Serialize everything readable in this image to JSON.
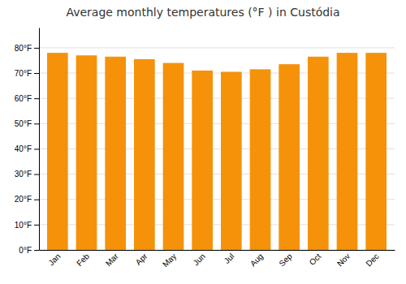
{
  "chart_data": {
    "type": "bar",
    "title": "Average monthly temperatures (°F ) in Custódia",
    "categories": [
      "Jan",
      "Feb",
      "Mar",
      "Apr",
      "May",
      "Jun",
      "Jul",
      "Aug",
      "Sep",
      "Oct",
      "Nov",
      "Dec"
    ],
    "values": [
      78.0,
      77.0,
      76.5,
      75.5,
      74.0,
      71.0,
      70.5,
      71.5,
      73.5,
      76.5,
      78.0,
      78.0
    ],
    "color": "#F5920A",
    "ylim": [
      0,
      88
    ],
    "yticks": [
      {
        "value": 0,
        "label": "0°F"
      },
      {
        "value": 10,
        "label": "10°F"
      },
      {
        "value": 20,
        "label": "20°F"
      },
      {
        "value": 30,
        "label": "30°F"
      },
      {
        "value": 40,
        "label": "40°F"
      },
      {
        "value": 50,
        "label": "50°F"
      },
      {
        "value": 60,
        "label": "60°F"
      },
      {
        "value": 70,
        "label": "70°F"
      },
      {
        "value": 80,
        "label": "80°F"
      }
    ],
    "grid": true
  }
}
